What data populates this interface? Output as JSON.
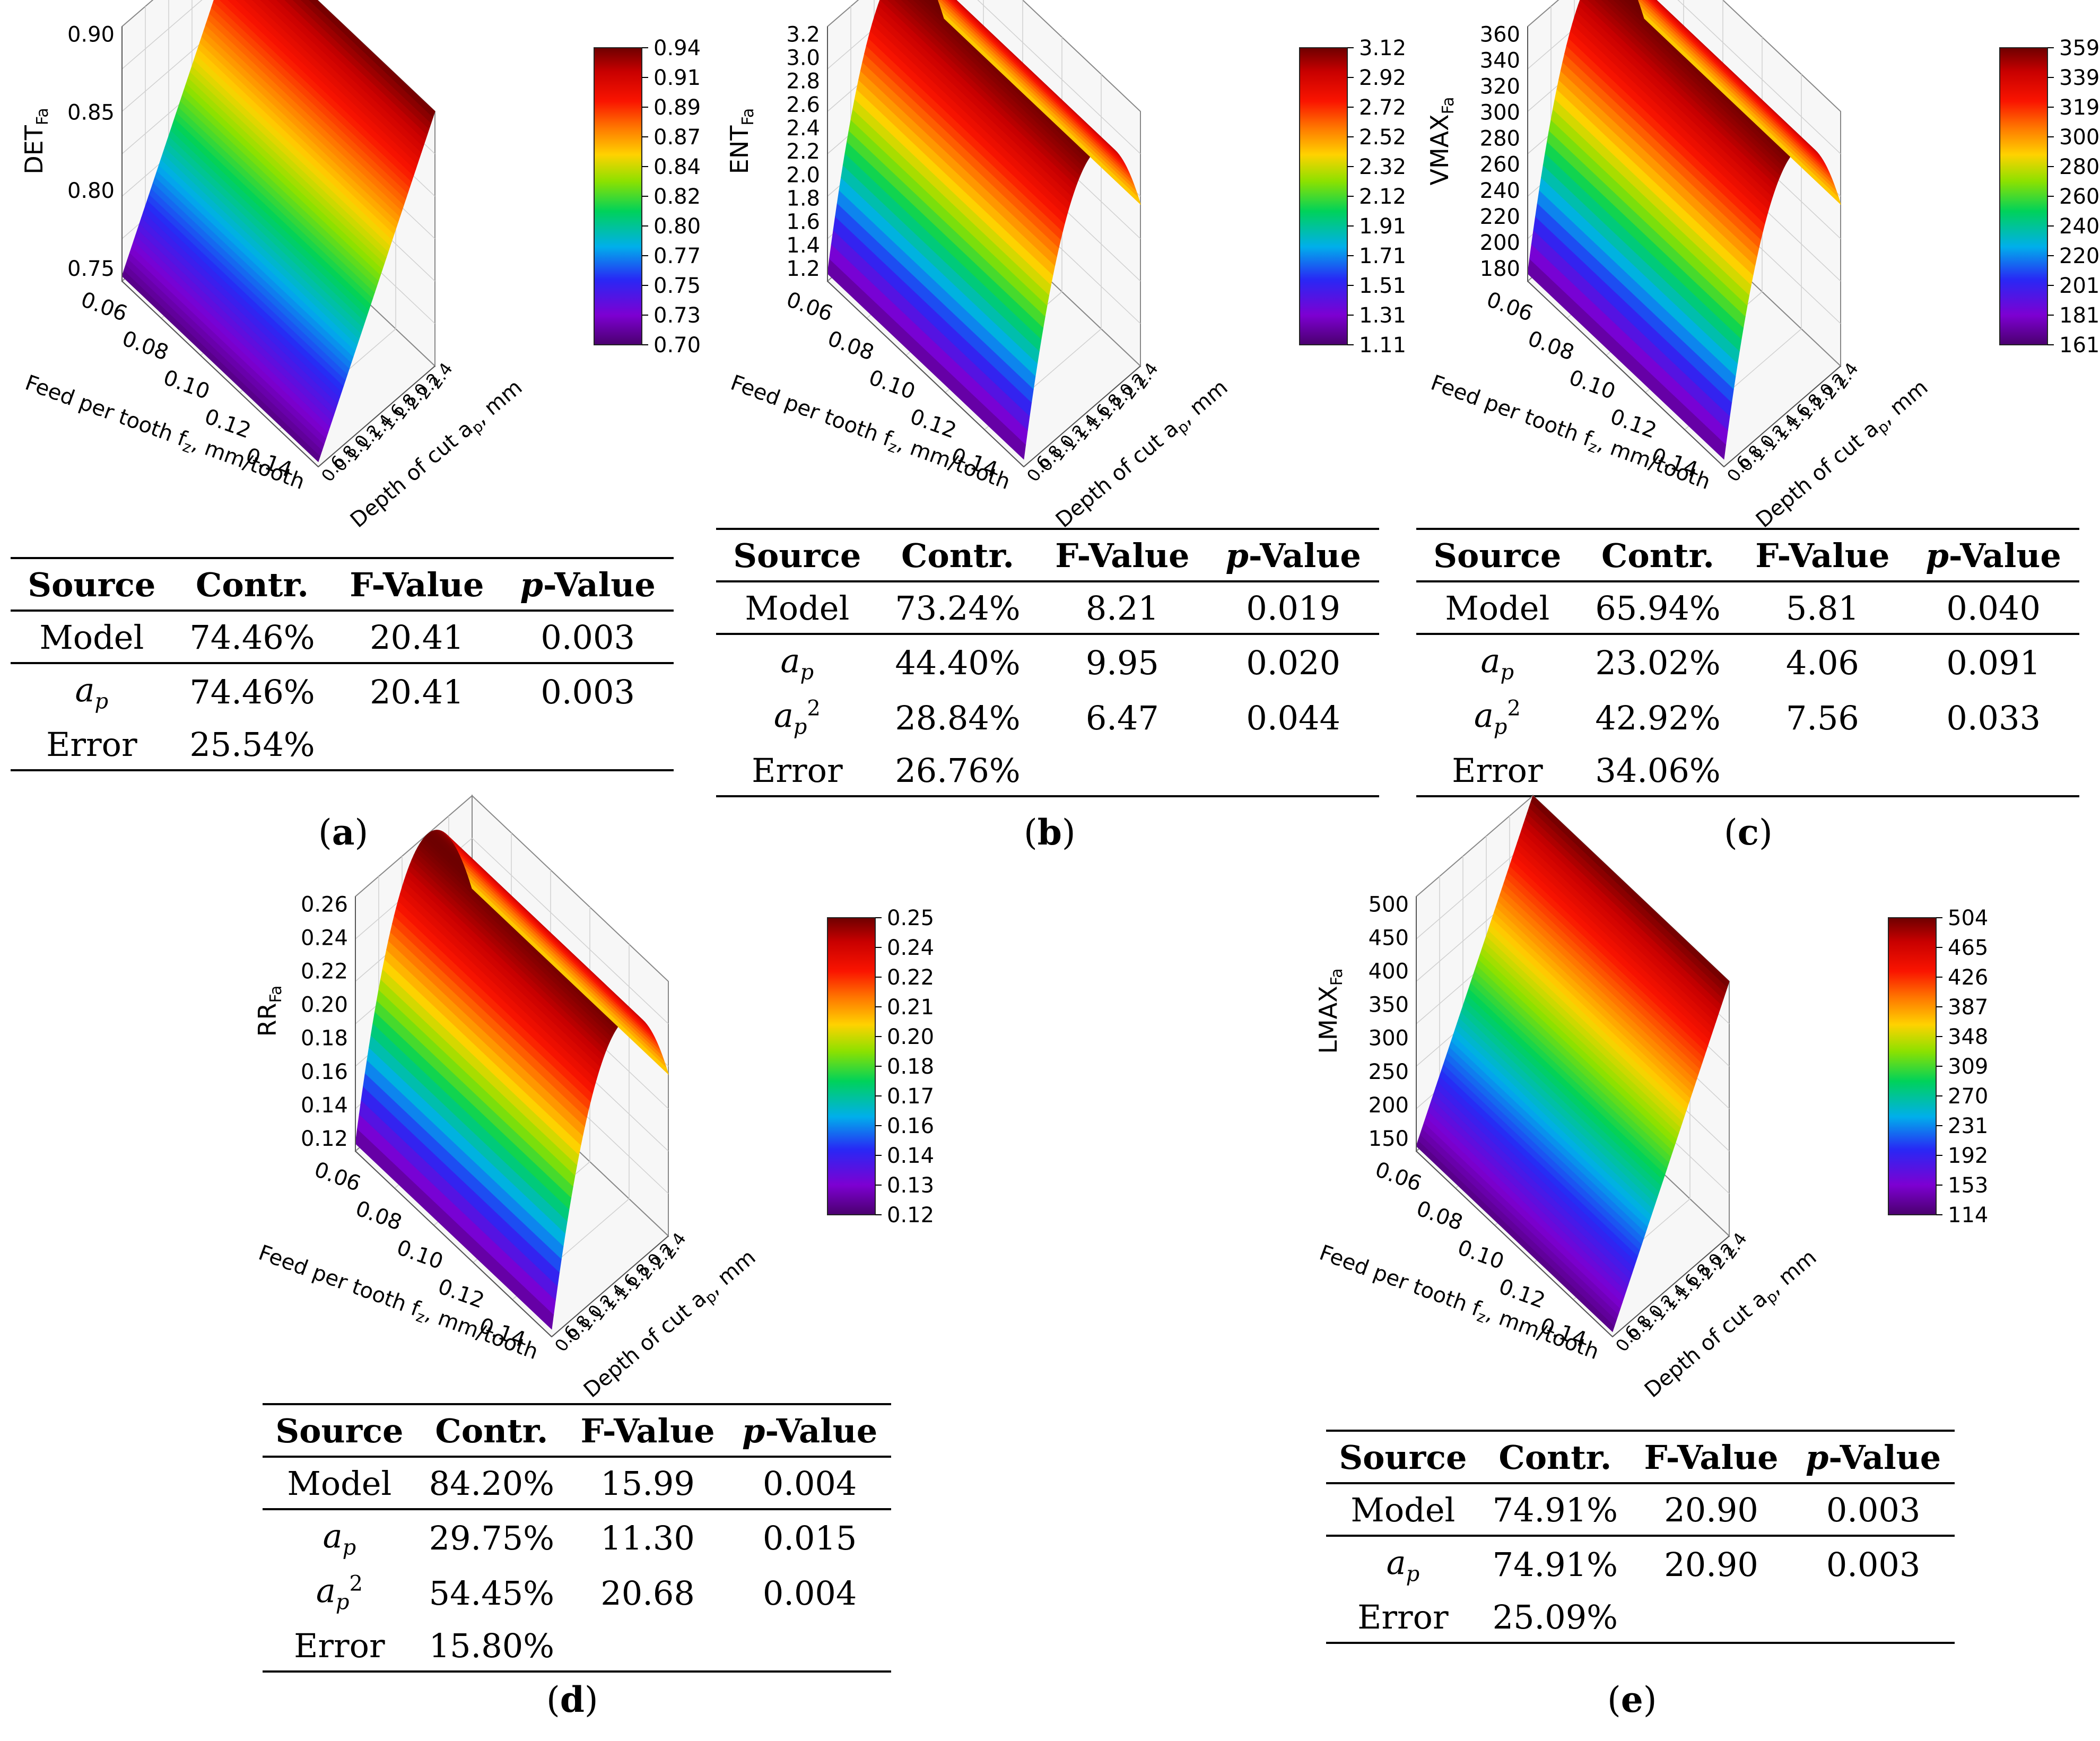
{
  "panels": [
    {
      "id": "a",
      "caption": "a",
      "shape": "linear",
      "chart_data": {
        "type": "surface",
        "zlabel": "DET",
        "zlabel_sub": "Fa",
        "xlabel": "Feed per tooth f",
        "xlabel_sub": "z",
        "xlabel_unit": ", mm/tooth",
        "ylabel": "Depth of cut a",
        "ylabel_sub": "p",
        "ylabel_unit": ", mm",
        "x_ticks": [
          "0.06",
          "0.08",
          "0.10",
          "0.12",
          "0.14"
        ],
        "y_ticks": [
          "0.6",
          "0.8",
          "1.0",
          "1.2",
          "1.4",
          "1.6",
          "1.8",
          "2.0",
          "2.2",
          "2.4"
        ],
        "z_ticks": [
          "0.75",
          "0.80",
          "0.85",
          "0.90"
        ],
        "colorbar_ticks": [
          "0.94",
          "0.91",
          "0.89",
          "0.87",
          "0.84",
          "0.82",
          "0.80",
          "0.77",
          "0.75",
          "0.73",
          "0.70"
        ],
        "z_range": [
          0.7,
          0.94
        ]
      },
      "table": {
        "headers": [
          "Source",
          "Contr.",
          "F-Value",
          "-Value"
        ],
        "header_p": "p",
        "rows": [
          {
            "source": "Model",
            "sup": "",
            "contr": "74.46%",
            "f": "20.41",
            "p": "0.003"
          },
          {
            "source": "a",
            "sub": "p",
            "sup": "",
            "contr": "74.46%",
            "f": "20.41",
            "p": "0.003"
          },
          {
            "source": "Error",
            "sup": "",
            "contr": "25.54%",
            "f": "",
            "p": ""
          }
        ]
      }
    },
    {
      "id": "b",
      "caption": "b",
      "shape": "parabolic",
      "chart_data": {
        "type": "surface",
        "zlabel": "ENT",
        "zlabel_sub": "Fa",
        "xlabel": "Feed per tooth f",
        "xlabel_sub": "z",
        "xlabel_unit": ", mm/tooth",
        "ylabel": "Depth of cut a",
        "ylabel_sub": "p",
        "ylabel_unit": ", mm",
        "x_ticks": [
          "0.06",
          "0.08",
          "0.10",
          "0.12",
          "0.14"
        ],
        "y_ticks": [
          "0.6",
          "0.8",
          "1.0",
          "1.2",
          "1.4",
          "1.6",
          "1.8",
          "2.0",
          "2.2",
          "2.4"
        ],
        "z_ticks": [
          "1.2",
          "1.4",
          "1.6",
          "1.8",
          "2.0",
          "2.2",
          "2.4",
          "2.6",
          "2.8",
          "3.0",
          "3.2"
        ],
        "colorbar_ticks": [
          "3.12",
          "2.92",
          "2.72",
          "2.52",
          "2.32",
          "2.12",
          "1.91",
          "1.71",
          "1.51",
          "1.31",
          "1.11"
        ],
        "z_range": [
          1.11,
          3.12
        ]
      },
      "table": {
        "headers": [
          "Source",
          "Contr.",
          "F-Value",
          "-Value"
        ],
        "header_p": "p",
        "rows": [
          {
            "source": "Model",
            "sup": "",
            "contr": "73.24%",
            "f": "8.21",
            "p": "0.019"
          },
          {
            "source": "a",
            "sub": "p",
            "sup": "",
            "contr": "44.40%",
            "f": "9.95",
            "p": "0.020"
          },
          {
            "source": "a",
            "sub": "p",
            "sup": "2",
            "contr": "28.84%",
            "f": "6.47",
            "p": "0.044"
          },
          {
            "source": "Error",
            "sup": "",
            "contr": "26.76%",
            "f": "",
            "p": ""
          }
        ]
      }
    },
    {
      "id": "c",
      "caption": "c",
      "shape": "parabolic",
      "chart_data": {
        "type": "surface",
        "zlabel": "VMAX",
        "zlabel_sub": "Fa",
        "xlabel": "Feed per tooth f",
        "xlabel_sub": "z",
        "xlabel_unit": ", mm/tooth",
        "ylabel": "Depth of cut a",
        "ylabel_sub": "p",
        "ylabel_unit": ", mm",
        "x_ticks": [
          "0.06",
          "0.08",
          "0.10",
          "0.12",
          "0.14"
        ],
        "y_ticks": [
          "0.6",
          "0.8",
          "1.0",
          "1.2",
          "1.4",
          "1.6",
          "1.8",
          "2.0",
          "2.2",
          "2.4"
        ],
        "z_ticks": [
          "180",
          "200",
          "220",
          "240",
          "260",
          "280",
          "300",
          "320",
          "340",
          "360"
        ],
        "colorbar_ticks": [
          "359",
          "339",
          "319",
          "300",
          "280",
          "260",
          "240",
          "220",
          "201",
          "181",
          "161"
        ],
        "z_range": [
          161,
          359
        ]
      },
      "table": {
        "headers": [
          "Source",
          "Contr.",
          "F-Value",
          "-Value"
        ],
        "header_p": "p",
        "rows": [
          {
            "source": "Model",
            "sup": "",
            "contr": "65.94%",
            "f": "5.81",
            "p": "0.040"
          },
          {
            "source": "a",
            "sub": "p",
            "sup": "",
            "contr": "23.02%",
            "f": "4.06",
            "p": "0.091"
          },
          {
            "source": "a",
            "sub": "p",
            "sup": "2",
            "contr": "42.92%",
            "f": "7.56",
            "p": "0.033"
          },
          {
            "source": "Error",
            "sup": "",
            "contr": "34.06%",
            "f": "",
            "p": ""
          }
        ]
      }
    },
    {
      "id": "d",
      "caption": "d",
      "shape": "parabolic",
      "chart_data": {
        "type": "surface",
        "zlabel": "RR",
        "zlabel_sub": "Fa",
        "xlabel": "Feed per tooth f",
        "xlabel_sub": "z",
        "xlabel_unit": ", mm/tooth",
        "ylabel": "Depth of cut a",
        "ylabel_sub": "p",
        "ylabel_unit": ", mm",
        "x_ticks": [
          "0.06",
          "0.08",
          "0.10",
          "0.12",
          "0.14"
        ],
        "y_ticks": [
          "0.6",
          "0.8",
          "1.0",
          "1.2",
          "1.4",
          "1.6",
          "1.8",
          "2.0",
          "2.2",
          "2.4"
        ],
        "z_ticks": [
          "0.12",
          "0.14",
          "0.16",
          "0.18",
          "0.20",
          "0.22",
          "0.24",
          "0.26"
        ],
        "colorbar_ticks": [
          "0.25",
          "0.24",
          "0.22",
          "0.21",
          "0.20",
          "0.18",
          "0.17",
          "0.16",
          "0.14",
          "0.13",
          "0.12"
        ],
        "z_range": [
          0.12,
          0.25
        ]
      },
      "table": {
        "headers": [
          "Source",
          "Contr.",
          "F-Value",
          "-Value"
        ],
        "header_p": "p",
        "rows": [
          {
            "source": "Model",
            "sup": "",
            "contr": "84.20%",
            "f": "15.99",
            "p": "0.004"
          },
          {
            "source": "a",
            "sub": "p",
            "sup": "",
            "contr": "29.75%",
            "f": "11.30",
            "p": "0.015"
          },
          {
            "source": "a",
            "sub": "p",
            "sup": "2",
            "contr": "54.45%",
            "f": "20.68",
            "p": "0.004"
          },
          {
            "source": "Error",
            "sup": "",
            "contr": "15.80%",
            "f": "",
            "p": ""
          }
        ]
      }
    },
    {
      "id": "e",
      "caption": "e",
      "shape": "linear",
      "chart_data": {
        "type": "surface",
        "zlabel": "LMAX",
        "zlabel_sub": "Fa",
        "xlabel": "Feed per tooth f",
        "xlabel_sub": "z",
        "xlabel_unit": ", mm/tooth",
        "ylabel": "Depth of cut a",
        "ylabel_sub": "p",
        "ylabel_unit": ", mm",
        "x_ticks": [
          "0.06",
          "0.08",
          "0.10",
          "0.12",
          "0.14"
        ],
        "y_ticks": [
          "0.6",
          "0.8",
          "1.0",
          "1.2",
          "1.4",
          "1.6",
          "1.8",
          "2.0",
          "2.2",
          "2.4"
        ],
        "z_ticks": [
          "150",
          "200",
          "250",
          "300",
          "350",
          "400",
          "450",
          "500"
        ],
        "colorbar_ticks": [
          "504",
          "465",
          "426",
          "387",
          "348",
          "309",
          "270",
          "231",
          "192",
          "153",
          "114"
        ],
        "z_range": [
          114,
          504
        ]
      },
      "table": {
        "headers": [
          "Source",
          "Contr.",
          "F-Value",
          "-Value"
        ],
        "header_p": "p",
        "rows": [
          {
            "source": "Model",
            "sup": "",
            "contr": "74.91%",
            "f": "20.90",
            "p": "0.003"
          },
          {
            "source": "a",
            "sub": "p",
            "sup": "",
            "contr": "74.91%",
            "f": "20.90",
            "p": "0.003"
          },
          {
            "source": "Error",
            "sup": "",
            "contr": "25.09%",
            "f": "",
            "p": ""
          }
        ]
      }
    }
  ]
}
